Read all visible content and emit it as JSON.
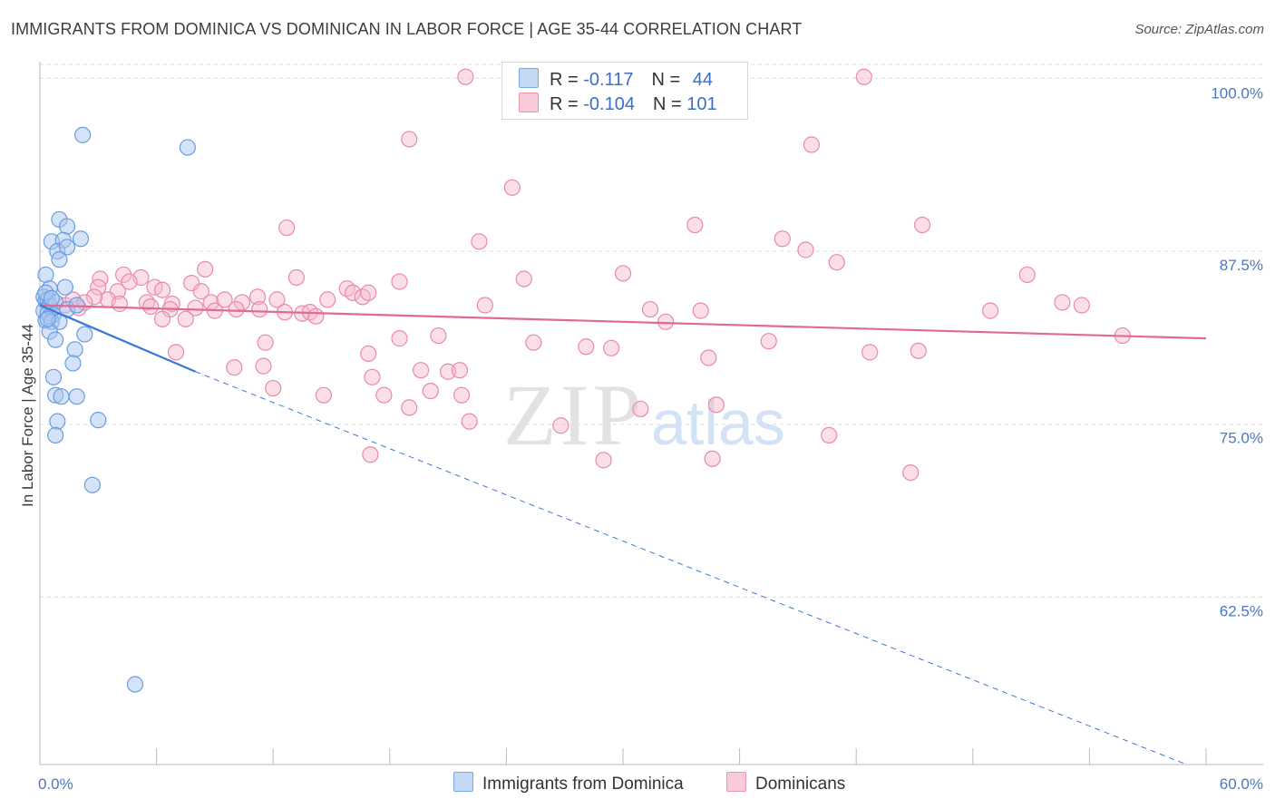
{
  "title": "IMMIGRANTS FROM DOMINICA VS DOMINICAN IN LABOR FORCE | AGE 35-44 CORRELATION CHART",
  "source": "Source: ZipAtlas.com",
  "watermark": {
    "zip": "ZIP",
    "atlas": "atlas"
  },
  "colors": {
    "blue_fill": "#aac8f0",
    "blue_stroke": "#6a9de0",
    "blue_line": "#3a78d4",
    "pink_fill": "#f6b8cc",
    "pink_stroke": "#e98aa8",
    "pink_line": "#e06a94",
    "grid": "#dddddd",
    "tick_text": "#4a78c2"
  },
  "legend": {
    "rows": [
      {
        "r_label": "R = ",
        "r_value": "-0.117",
        "n_label": "N = ",
        "n_value": "44"
      },
      {
        "r_label": "R = ",
        "r_value": "-0.104",
        "n_label": "N = ",
        "n_value": "101"
      }
    ]
  },
  "bottom_legend": {
    "items": [
      "Immigrants from Dominica",
      "Dominicans"
    ]
  },
  "chart_data": {
    "type": "scatter",
    "title": "IMMIGRANTS FROM DOMINICA VS DOMINICAN IN LABOR FORCE | AGE 35-44 CORRELATION CHART",
    "xlabel": "",
    "ylabel": "In Labor Force | Age 35-44",
    "xlim": [
      0,
      60
    ],
    "ylim": [
      50.4,
      101.2
    ],
    "x_tick_labels": [
      "0.0%",
      "60.0%"
    ],
    "y_ticks": [
      62.5,
      75.0,
      87.5,
      100.0
    ],
    "y_tick_labels": [
      "62.5%",
      "75.0%",
      "87.5%",
      "100.0%"
    ],
    "grid": true,
    "legend_position": "top-center",
    "series": [
      {
        "name": "Immigrants from Dominica",
        "r": -0.117,
        "n": 44,
        "points": [
          [
            2.2,
            95.9
          ],
          [
            7.6,
            95.0
          ],
          [
            1.0,
            89.8
          ],
          [
            1.4,
            89.3
          ],
          [
            0.6,
            88.2
          ],
          [
            1.2,
            88.3
          ],
          [
            2.1,
            88.4
          ],
          [
            0.9,
            87.5
          ],
          [
            1.4,
            87.8
          ],
          [
            1.0,
            86.9
          ],
          [
            0.3,
            85.8
          ],
          [
            0.5,
            84.8
          ],
          [
            1.3,
            84.9
          ],
          [
            0.2,
            84.2
          ],
          [
            0.3,
            83.9
          ],
          [
            0.4,
            84.0
          ],
          [
            0.5,
            83.6
          ],
          [
            0.8,
            83.8
          ],
          [
            0.2,
            83.2
          ],
          [
            0.4,
            83.0
          ],
          [
            0.5,
            82.8
          ],
          [
            0.7,
            82.9
          ],
          [
            1.4,
            83.3
          ],
          [
            1.9,
            83.6
          ],
          [
            0.3,
            82.5
          ],
          [
            0.6,
            82.4
          ],
          [
            1.0,
            82.4
          ],
          [
            0.5,
            81.7
          ],
          [
            0.8,
            81.1
          ],
          [
            2.3,
            81.5
          ],
          [
            1.8,
            80.4
          ],
          [
            1.7,
            79.4
          ],
          [
            0.7,
            78.4
          ],
          [
            0.8,
            77.1
          ],
          [
            1.1,
            77.0
          ],
          [
            1.9,
            77.0
          ],
          [
            0.9,
            75.2
          ],
          [
            3.0,
            75.3
          ],
          [
            0.8,
            74.2
          ],
          [
            2.7,
            70.6
          ],
          [
            4.9,
            56.2
          ],
          [
            0.3,
            84.5
          ],
          [
            0.6,
            84.1
          ],
          [
            0.4,
            82.6
          ]
        ],
        "trend": {
          "x": [
            0,
            8
          ],
          "y": [
            83.6,
            78.8
          ],
          "extended_to": [
            59.0,
            50.4
          ]
        }
      },
      {
        "name": "Dominicans",
        "r": -0.104,
        "n": 101,
        "points": [
          [
            21.9,
            100.1
          ],
          [
            28.3,
            100.2
          ],
          [
            42.4,
            100.1
          ],
          [
            19.0,
            95.6
          ],
          [
            39.7,
            95.2
          ],
          [
            24.3,
            92.1
          ],
          [
            12.7,
            89.2
          ],
          [
            33.7,
            89.4
          ],
          [
            45.4,
            89.4
          ],
          [
            22.6,
            88.2
          ],
          [
            38.2,
            88.4
          ],
          [
            39.4,
            87.6
          ],
          [
            41.0,
            86.7
          ],
          [
            8.5,
            86.2
          ],
          [
            30.0,
            85.9
          ],
          [
            50.8,
            85.8
          ],
          [
            3.1,
            85.5
          ],
          [
            4.3,
            85.8
          ],
          [
            5.2,
            85.6
          ],
          [
            7.8,
            85.2
          ],
          [
            13.2,
            85.6
          ],
          [
            18.5,
            85.3
          ],
          [
            24.9,
            85.5
          ],
          [
            4.6,
            85.3
          ],
          [
            3.0,
            84.9
          ],
          [
            4.0,
            84.6
          ],
          [
            5.9,
            84.9
          ],
          [
            6.3,
            84.7
          ],
          [
            8.3,
            84.6
          ],
          [
            15.8,
            84.8
          ],
          [
            16.1,
            84.5
          ],
          [
            3.5,
            84.0
          ],
          [
            4.1,
            83.7
          ],
          [
            5.5,
            83.8
          ],
          [
            6.8,
            83.7
          ],
          [
            8.8,
            83.8
          ],
          [
            9.5,
            84.0
          ],
          [
            10.4,
            83.8
          ],
          [
            11.2,
            84.2
          ],
          [
            12.2,
            84.0
          ],
          [
            14.8,
            84.0
          ],
          [
            16.6,
            84.2
          ],
          [
            16.9,
            84.5
          ],
          [
            22.9,
            83.6
          ],
          [
            34.0,
            83.2
          ],
          [
            48.9,
            83.2
          ],
          [
            1.3,
            83.6
          ],
          [
            2.0,
            83.4
          ],
          [
            2.8,
            84.2
          ],
          [
            5.7,
            83.5
          ],
          [
            6.7,
            83.3
          ],
          [
            8.0,
            83.4
          ],
          [
            9.0,
            83.2
          ],
          [
            10.1,
            83.3
          ],
          [
            11.3,
            83.3
          ],
          [
            12.6,
            83.1
          ],
          [
            13.5,
            83.0
          ],
          [
            13.9,
            83.1
          ],
          [
            14.2,
            82.8
          ],
          [
            31.4,
            83.3
          ],
          [
            52.6,
            83.8
          ],
          [
            53.6,
            83.6
          ],
          [
            1.7,
            84.0
          ],
          [
            2.3,
            83.8
          ],
          [
            6.3,
            82.6
          ],
          [
            7.5,
            82.6
          ],
          [
            32.2,
            82.4
          ],
          [
            11.6,
            80.9
          ],
          [
            16.9,
            80.1
          ],
          [
            18.5,
            81.2
          ],
          [
            20.5,
            81.4
          ],
          [
            25.4,
            80.9
          ],
          [
            28.1,
            80.6
          ],
          [
            29.4,
            80.5
          ],
          [
            37.5,
            81.0
          ],
          [
            34.4,
            79.8
          ],
          [
            42.7,
            80.2
          ],
          [
            45.2,
            80.3
          ],
          [
            7.0,
            80.2
          ],
          [
            10.0,
            79.1
          ],
          [
            11.5,
            79.2
          ],
          [
            17.1,
            78.4
          ],
          [
            19.6,
            78.9
          ],
          [
            21.0,
            78.8
          ],
          [
            21.6,
            78.9
          ],
          [
            12.0,
            77.6
          ],
          [
            14.6,
            77.1
          ],
          [
            17.7,
            77.1
          ],
          [
            20.1,
            77.4
          ],
          [
            21.7,
            77.1
          ],
          [
            19.0,
            76.2
          ],
          [
            30.9,
            76.1
          ],
          [
            34.8,
            76.4
          ],
          [
            22.1,
            75.2
          ],
          [
            26.8,
            74.9
          ],
          [
            40.6,
            74.2
          ],
          [
            17.0,
            72.8
          ],
          [
            29.0,
            72.4
          ],
          [
            34.6,
            72.5
          ],
          [
            44.8,
            71.5
          ],
          [
            55.7,
            81.4
          ]
        ],
        "trend": {
          "x": [
            0,
            60
          ],
          "y": [
            83.6,
            81.2
          ]
        }
      }
    ]
  }
}
